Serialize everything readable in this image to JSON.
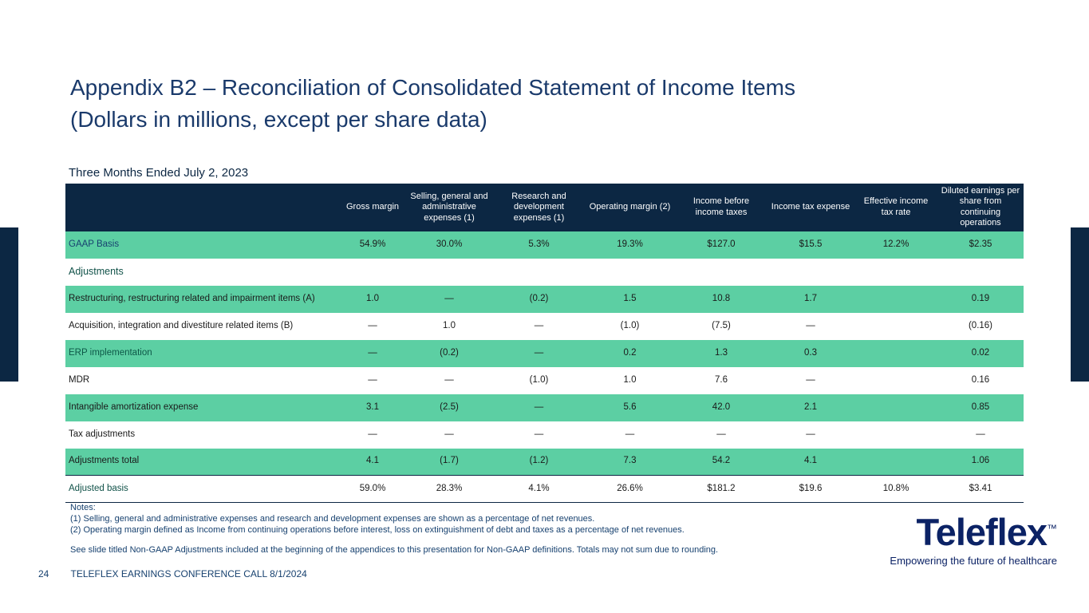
{
  "slide": {
    "title_line1": "Appendix B2 – Reconciliation of Consolidated Statement of Income Items",
    "title_line2": "(Dollars in millions, except per share data)",
    "period_label": "Three Months Ended July 2, 2023"
  },
  "colors": {
    "navy": "#0C2743",
    "mint_green": "#5CCFA3",
    "title_navy": "#1A3A6B",
    "logo_navy": "#0B2265"
  },
  "table": {
    "columns": [
      "",
      "Gross margin",
      "Selling, general and administrative expenses (1)",
      "Research and development expenses (1)",
      "Operating margin (2)",
      "Income before income taxes",
      "Income tax expense",
      "Effective income tax rate",
      "Diluted earnings per share from continuing operations"
    ],
    "rows": [
      {
        "label": "GAAP Basis",
        "label_color": "#17416F",
        "shaded": true,
        "section": false,
        "total": false,
        "values": [
          "54.9%",
          "30.0%",
          "5.3%",
          "19.3%",
          "$127.0",
          "$15.5",
          "12.2%",
          "$2.35"
        ]
      },
      {
        "label": "Adjustments",
        "label_color": "#115249",
        "shaded": false,
        "section": true,
        "total": false,
        "values": [
          "",
          "",
          "",
          "",
          "",
          "",
          "",
          ""
        ]
      },
      {
        "label": "Restructuring, restructuring related and impairment items (A)",
        "label_color": "#1a1a1a",
        "shaded": true,
        "section": false,
        "total": false,
        "values": [
          "1.0",
          "—",
          "(0.2)",
          "1.5",
          "10.8",
          "1.7",
          "",
          "0.19"
        ]
      },
      {
        "label": "Acquisition, integration and divestiture related items (B)",
        "label_color": "#1a1a1a",
        "shaded": false,
        "section": false,
        "total": false,
        "values": [
          "—",
          "1.0",
          "—",
          "(1.0)",
          "(7.5)",
          "—",
          "",
          "(0.16)"
        ]
      },
      {
        "label": "ERP implementation",
        "label_color": "#0d5747",
        "shaded": true,
        "section": false,
        "total": false,
        "values": [
          "—",
          "(0.2)",
          "—",
          "0.2",
          "1.3",
          "0.3",
          "",
          "0.02"
        ]
      },
      {
        "label": "MDR",
        "label_color": "#1a1a1a",
        "shaded": false,
        "section": false,
        "total": false,
        "values": [
          "—",
          "—",
          "(1.0)",
          "1.0",
          "7.6",
          "—",
          "",
          "0.16"
        ]
      },
      {
        "label": "Intangible amortization expense",
        "label_color": "#1a1a1a",
        "shaded": true,
        "section": false,
        "total": false,
        "values": [
          "3.1",
          "(2.5)",
          "—",
          "5.6",
          "42.0",
          "2.1",
          "",
          "0.85"
        ]
      },
      {
        "label": "Tax adjustments",
        "label_color": "#1a1a1a",
        "shaded": false,
        "section": false,
        "total": false,
        "values": [
          "—",
          "—",
          "—",
          "—",
          "—",
          "—",
          "",
          "—"
        ]
      },
      {
        "label": "Adjustments total",
        "label_color": "#1a1a1a",
        "shaded": true,
        "section": false,
        "total": false,
        "values": [
          "4.1",
          "(1.7)",
          "(1.2)",
          "7.3",
          "54.2",
          "4.1",
          "",
          "1.06"
        ]
      },
      {
        "label": "Adjusted basis",
        "label_color": "#115249",
        "shaded": false,
        "section": false,
        "total": true,
        "values": [
          "59.0%",
          "28.3%",
          "4.1%",
          "26.6%",
          "$181.2",
          "$19.6",
          "10.8%",
          "$3.41"
        ]
      }
    ]
  },
  "notes": {
    "heading": "Notes:",
    "note1": "(1) Selling, general and administrative expenses and research and development expenses are shown as a percentage of net revenues.",
    "note2": "(2) Operating margin defined as Income from continuing operations before interest, loss on extinguishment of debt and taxes as a percentage of net revenues.",
    "disclaimer": "See slide titled Non-GAAP Adjustments included at the beginning of the appendices to this presentation for Non-GAAP definitions. Totals may not sum due to rounding."
  },
  "footer": {
    "page_number": "24",
    "text": "TELEFLEX EARNINGS CONFERENCE CALL 8/1/2024"
  },
  "logo": {
    "name": "Teleflex",
    "tm": "™",
    "tagline": "Empowering the future of healthcare"
  }
}
